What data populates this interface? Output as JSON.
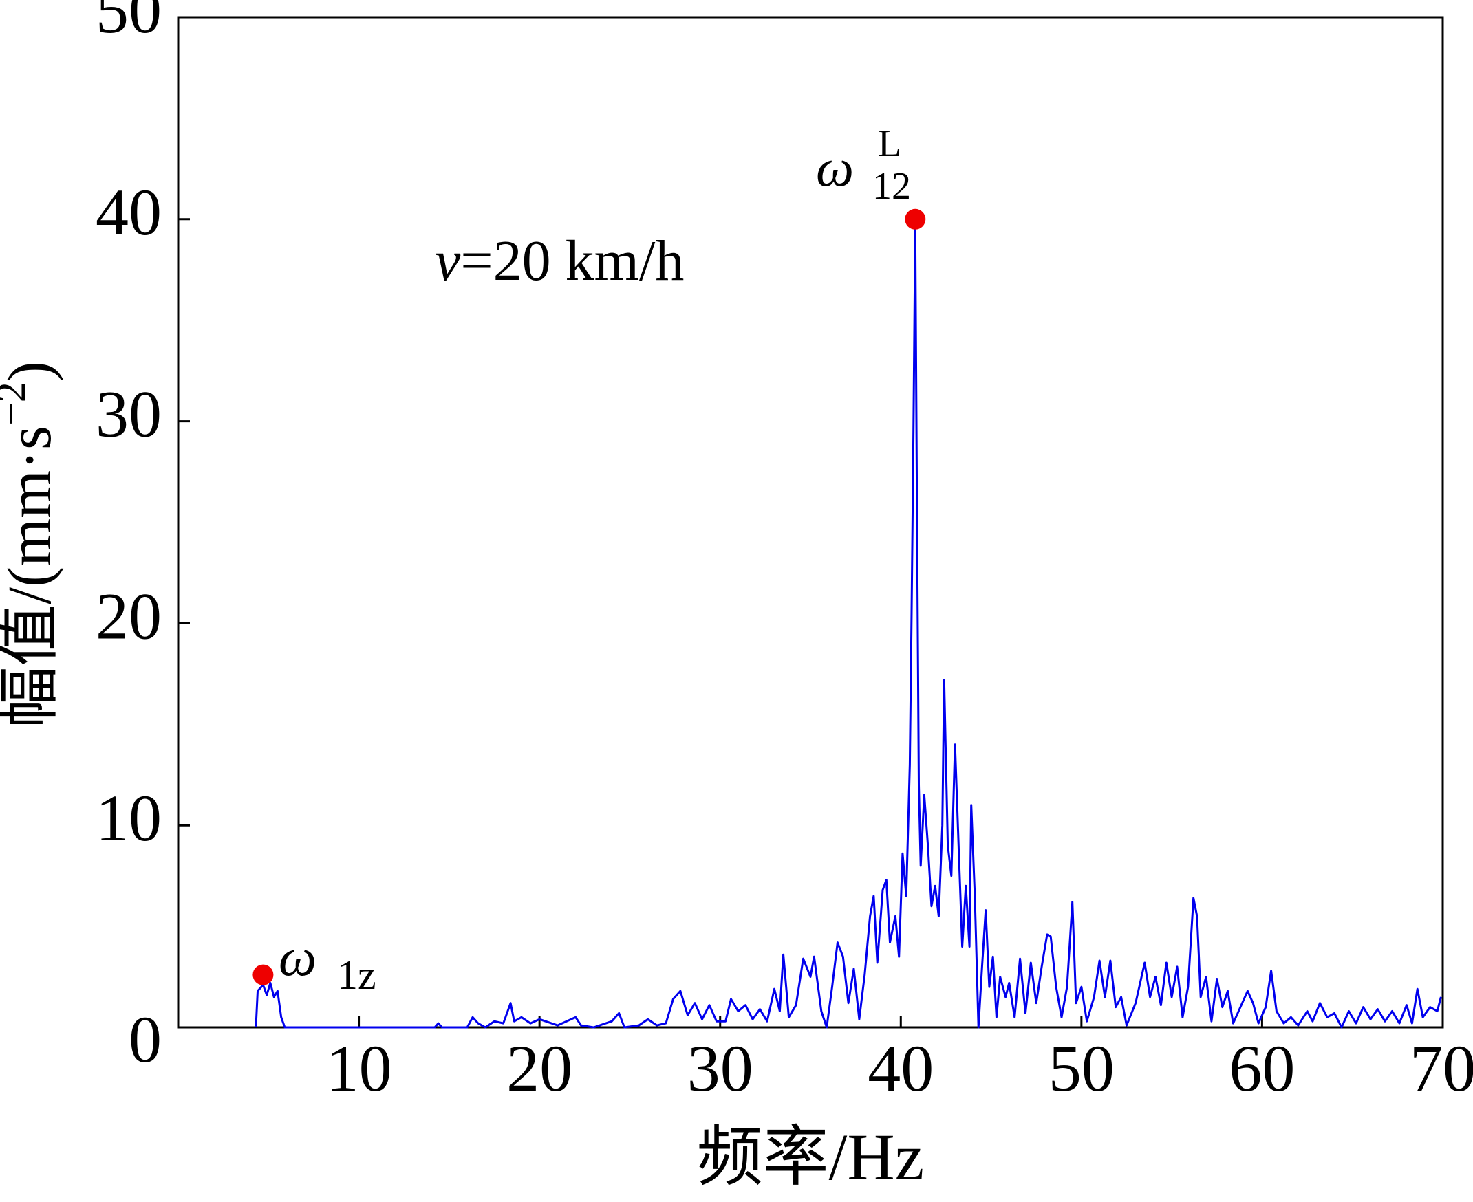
{
  "chart_data": {
    "type": "line",
    "x_label": "频率/Hz",
    "y_label": {
      "main": "幅值/(mm·s",
      "sup": "−2",
      "end": ")"
    },
    "annotations": {
      "speed_var": "v",
      "speed_rest": "=20 km/h",
      "low_peak": {
        "symbol": "ω",
        "sub": "1z"
      },
      "main_peak": {
        "symbol": "ω",
        "sub": "12",
        "sup": "L"
      }
    },
    "xlim": [
      0,
      70
    ],
    "xticks": [
      10,
      20,
      30,
      40,
      50,
      60,
      70
    ],
    "ylim": [
      0,
      50
    ],
    "yticks": [
      0,
      10,
      20,
      30,
      40,
      50
    ],
    "series": [
      {
        "color": "#0000ee",
        "x": [
          4.3,
          4.4,
          4.7,
          4.9,
          5.1,
          5.3,
          5.5,
          5.7,
          5.9,
          14.2,
          14.4,
          14.6,
          16,
          16.3,
          16.6,
          17,
          17.5,
          18,
          18.4,
          18.6,
          19,
          19.5,
          20,
          21,
          22,
          22.3,
          23,
          24,
          24.4,
          24.7,
          25.5,
          26,
          26.5,
          27,
          27.4,
          27.8,
          28.2,
          28.6,
          29,
          29.4,
          29.8,
          30.3,
          30.6,
          31,
          31.4,
          31.8,
          32.2,
          32.6,
          33,
          33.3,
          33.5,
          33.8,
          34.2,
          34.6,
          35,
          35.2,
          35.6,
          35.9,
          36.2,
          36.5,
          36.8,
          37.1,
          37.4,
          37.7,
          38,
          38.3,
          38.5,
          38.7,
          39,
          39.2,
          39.4,
          39.7,
          39.9,
          40.1,
          40.3,
          40.5,
          40.6,
          40.7,
          40.8,
          40.9,
          41,
          41.1,
          41.3,
          41.5,
          41.7,
          41.9,
          42.1,
          42.3,
          42.4,
          42.6,
          42.8,
          43,
          43.2,
          43.4,
          43.6,
          43.8,
          43.9,
          44.1,
          44.3,
          44.5,
          44.7,
          44.9,
          45.1,
          45.3,
          45.5,
          45.8,
          46,
          46.3,
          46.6,
          46.9,
          47.2,
          47.5,
          47.8,
          48.1,
          48.3,
          48.6,
          48.9,
          49.2,
          49.5,
          49.7,
          50,
          50.3,
          50.7,
          51,
          51.3,
          51.6,
          51.9,
          52.2,
          52.5,
          53,
          53.5,
          53.8,
          54.1,
          54.4,
          54.7,
          55,
          55.3,
          55.6,
          55.9,
          56.2,
          56.4,
          56.6,
          56.9,
          57.2,
          57.5,
          57.8,
          58.1,
          58.4,
          58.8,
          59.2,
          59.5,
          59.8,
          60.2,
          60.5,
          60.8,
          61.2,
          61.6,
          62,
          62.5,
          62.8,
          63.2,
          63.6,
          64,
          64.4,
          64.8,
          65.2,
          65.6,
          66,
          66.4,
          66.8,
          67.2,
          67.6,
          68,
          68.3,
          68.6,
          68.9,
          69.3,
          69.7,
          69.9
        ],
        "values": [
          0,
          1.8,
          2.1,
          1.6,
          2.2,
          1.5,
          1.8,
          0.5,
          0,
          0,
          0.2,
          0,
          0,
          0.5,
          0.2,
          0,
          0.3,
          0.2,
          1.2,
          0.3,
          0.5,
          0.2,
          0.4,
          0.1,
          0.5,
          0.1,
          0,
          0.3,
          0.7,
          0,
          0.1,
          0.4,
          0.1,
          0.2,
          1.4,
          1.8,
          0.6,
          1.2,
          0.4,
          1.1,
          0.3,
          0.3,
          1.4,
          0.8,
          1.1,
          0.4,
          0.9,
          0.3,
          1.9,
          0.8,
          3.6,
          0.5,
          1.1,
          3.4,
          2.5,
          3.5,
          0.8,
          0,
          2,
          4.2,
          3.5,
          1.2,
          2.9,
          0.4,
          2.6,
          5.5,
          6.5,
          3.2,
          6.8,
          7.3,
          4.2,
          5.5,
          3.5,
          8.6,
          6.5,
          13,
          20.5,
          29.5,
          39.5,
          25,
          12,
          8,
          11.5,
          9,
          6,
          7,
          5.5,
          10,
          17.2,
          9,
          7.5,
          14,
          9,
          4,
          7,
          4,
          11,
          6.5,
          0,
          3,
          5.8,
          2,
          3.5,
          0.5,
          2.5,
          1.5,
          2.2,
          0.5,
          3.4,
          0.7,
          3.2,
          1.2,
          3,
          4.6,
          4.5,
          2,
          0.5,
          2,
          6.2,
          1.2,
          2,
          0.3,
          1.5,
          3.3,
          1.5,
          3.3,
          1,
          1.5,
          0.1,
          1.2,
          3.2,
          1.5,
          2.5,
          1.1,
          3.2,
          1.5,
          3,
          0.5,
          2,
          6.4,
          5.5,
          1.5,
          2.5,
          0.3,
          2.4,
          1,
          1.8,
          0.2,
          1,
          1.8,
          1.2,
          0.2,
          1,
          2.8,
          0.8,
          0.2,
          0.5,
          0.1,
          0.8,
          0.3,
          1.2,
          0.5,
          0.7,
          0,
          0.8,
          0.2,
          1,
          0.4,
          0.9,
          0.3,
          0.8,
          0.2,
          1.1,
          0.2,
          1.9,
          0.5,
          1,
          0.8,
          1.5
        ]
      }
    ],
    "markers": {
      "color": "#ee0000",
      "x": [
        4.7,
        40.8
      ],
      "values": [
        2.6,
        40
      ]
    }
  }
}
